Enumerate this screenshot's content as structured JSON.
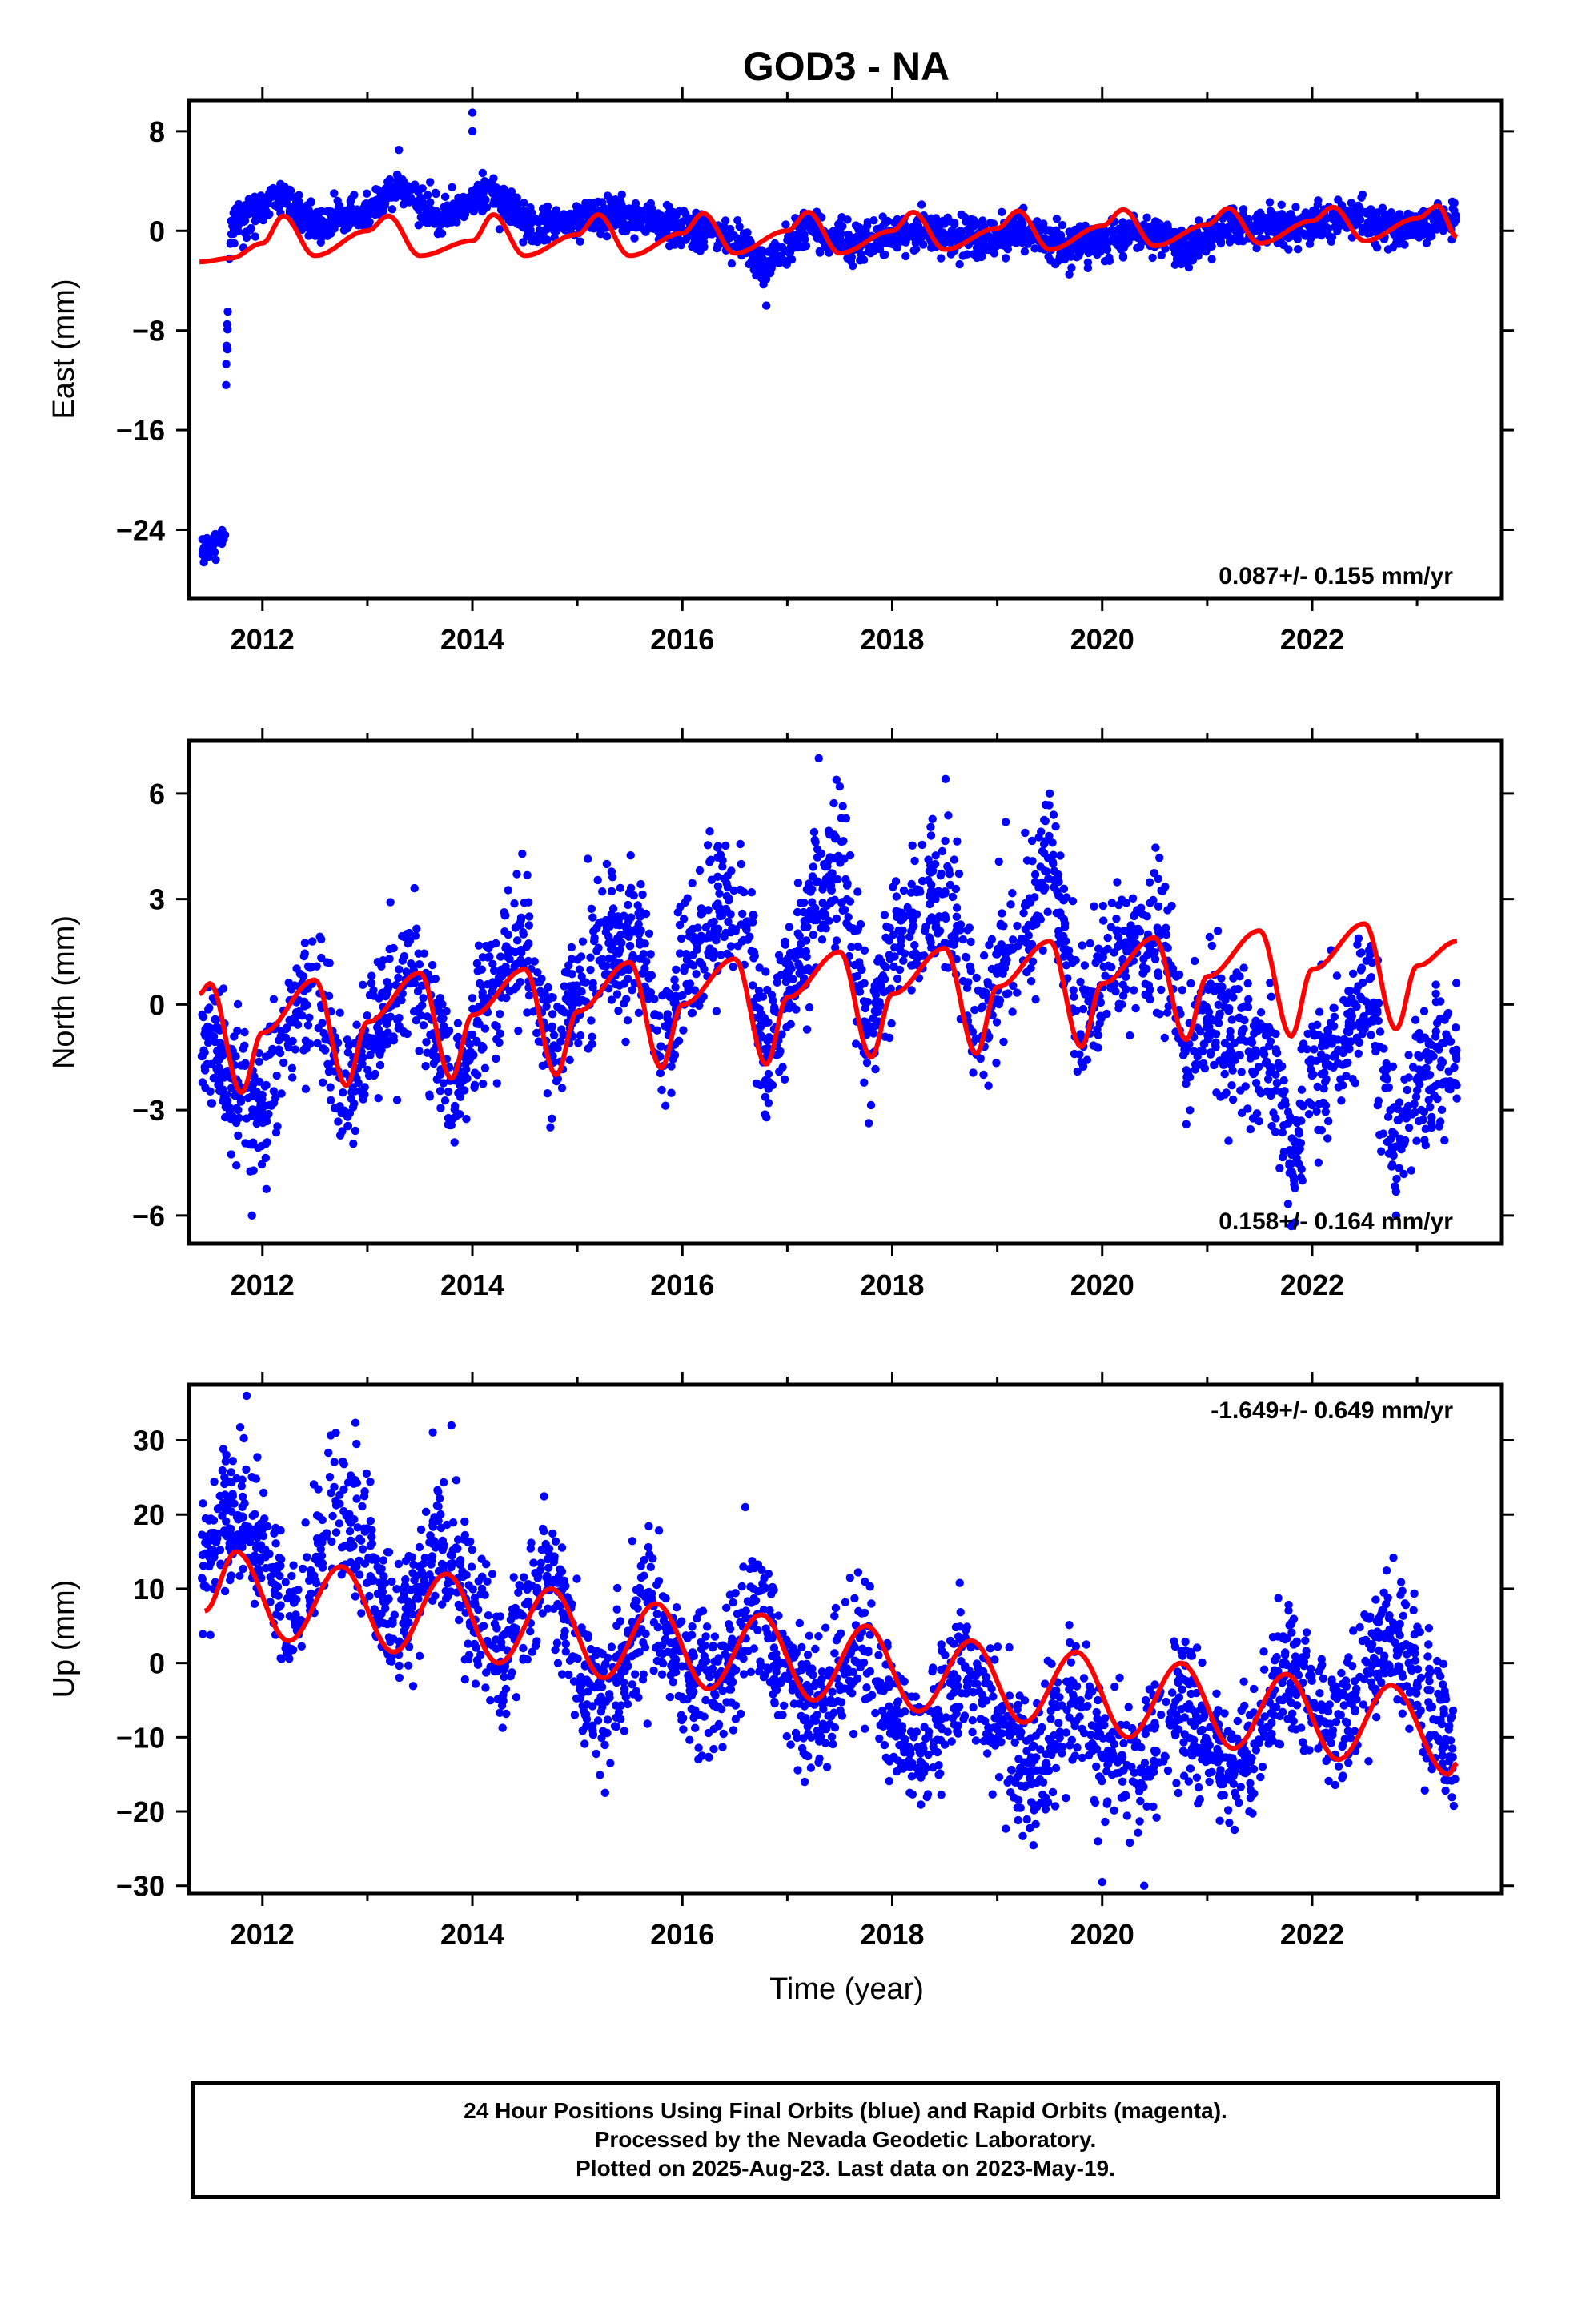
{
  "title": "GOD3 - NA",
  "colors": {
    "data": "#0000ff",
    "model": "#ff0000",
    "frame": "#000000"
  },
  "xaxis": {
    "label": "Time (year)",
    "range": [
      2011.3,
      2023.8
    ],
    "ticks": [
      "2012",
      "2014",
      "2016",
      "2018",
      "2020",
      "2022"
    ]
  },
  "footer": {
    "line1": "24 Hour Positions Using Final Orbits (blue) and Rapid Orbits (magenta).",
    "line2": "Processed by the Nevada Geodetic Laboratory.",
    "line3": "Plotted on 2025-Aug-23. Last data on 2023-May-19."
  },
  "chart_data": [
    {
      "type": "scatter",
      "ylabel": "East (mm)",
      "ylim": [
        -29.5,
        10.5
      ],
      "yticks": [
        "8",
        "0",
        "−8",
        "−16",
        "−24"
      ],
      "rate_label": "0.087+/- 0.155 mm/yr",
      "rate_position": "bottom-right",
      "series": [
        {
          "kind": "points",
          "x_start": 2011.42,
          "x_end": 2023.38,
          "samples": [
            [
              2011.45,
              -26.0
            ],
            [
              2011.6,
              -25.0
            ],
            [
              2011.7,
              0.5
            ],
            [
              2012.2,
              2.8
            ],
            [
              2012.5,
              0.4
            ],
            [
              2013.0,
              1.5
            ],
            [
              2013.3,
              3.5
            ],
            [
              2013.7,
              1.0
            ],
            [
              2014.0,
              2.5
            ],
            [
              2014.2,
              3.0
            ],
            [
              2014.6,
              0.0
            ],
            [
              2015.0,
              0.8
            ],
            [
              2015.4,
              1.5
            ],
            [
              2016.0,
              0.0
            ],
            [
              2016.5,
              -0.5
            ],
            [
              2016.8,
              -3.0
            ],
            [
              2017.2,
              0.5
            ],
            [
              2017.6,
              -1.0
            ],
            [
              2018.0,
              -0.5
            ],
            [
              2018.4,
              0.0
            ],
            [
              2018.8,
              -1.0
            ],
            [
              2019.2,
              0.3
            ],
            [
              2019.6,
              -1.2
            ],
            [
              2020.0,
              -0.8
            ],
            [
              2020.4,
              -0.2
            ],
            [
              2020.8,
              -1.3
            ],
            [
              2021.2,
              0.2
            ],
            [
              2021.6,
              0.3
            ],
            [
              2022.0,
              0.5
            ],
            [
              2022.4,
              1.0
            ],
            [
              2022.8,
              0.2
            ],
            [
              2023.2,
              0.8
            ]
          ],
          "outliers": [
            [
              2014.0,
              9.5
            ],
            [
              2014.0,
              8.0
            ],
            [
              2016.8,
              -6.0
            ],
            [
              2013.3,
              6.5
            ]
          ]
        },
        {
          "kind": "model_line",
          "annual_amplitude": 1.7,
          "phase_peak_year_fraction": 0.17,
          "approx_values": [
            [
              2011.4,
              -2.5
            ],
            [
              2011.7,
              -2.2
            ],
            [
              2012.0,
              -1.0
            ],
            [
              2012.2,
              1.2
            ],
            [
              2012.5,
              -2.0
            ],
            [
              2013.0,
              0.0
            ],
            [
              2013.2,
              1.2
            ],
            [
              2013.5,
              -2.0
            ],
            [
              2014.0,
              -0.8
            ],
            [
              2014.2,
              1.3
            ],
            [
              2014.5,
              -2.0
            ],
            [
              2015.0,
              -0.3
            ],
            [
              2015.2,
              1.3
            ],
            [
              2015.5,
              -2.0
            ],
            [
              2016.0,
              -0.2
            ],
            [
              2016.2,
              1.4
            ],
            [
              2016.5,
              -1.8
            ],
            [
              2017.0,
              0.0
            ],
            [
              2017.2,
              1.5
            ],
            [
              2017.5,
              -1.8
            ],
            [
              2018.0,
              0.0
            ],
            [
              2018.2,
              1.5
            ],
            [
              2018.5,
              -1.5
            ],
            [
              2019.0,
              0.2
            ],
            [
              2019.2,
              1.6
            ],
            [
              2019.5,
              -1.5
            ],
            [
              2020.0,
              0.4
            ],
            [
              2020.2,
              1.7
            ],
            [
              2020.5,
              -1.2
            ],
            [
              2021.0,
              0.5
            ],
            [
              2021.2,
              1.8
            ],
            [
              2021.5,
              -1.0
            ],
            [
              2022.0,
              0.8
            ],
            [
              2022.2,
              1.9
            ],
            [
              2022.5,
              -0.8
            ],
            [
              2023.0,
              1.0
            ],
            [
              2023.2,
              2.0
            ],
            [
              2023.38,
              -0.5
            ]
          ]
        }
      ]
    },
    {
      "type": "scatter",
      "ylabel": "North (mm)",
      "ylim": [
        -6.8,
        7.5
      ],
      "yticks": [
        "6",
        "3",
        "0",
        "−3",
        "−6"
      ],
      "rate_label": "0.158+/- 0.164 mm/yr",
      "rate_position": "bottom-right",
      "series": [
        {
          "kind": "points",
          "x_start": 2011.42,
          "x_end": 2023.38,
          "samples": [
            [
              2011.45,
              -1.0
            ],
            [
              2011.8,
              -2.5
            ],
            [
              2012.0,
              -3.0
            ],
            [
              2012.3,
              -0.5
            ],
            [
              2012.5,
              0.5
            ],
            [
              2012.8,
              -2.8
            ],
            [
              2013.0,
              -1.0
            ],
            [
              2013.3,
              0.5
            ],
            [
              2013.5,
              1.0
            ],
            [
              2013.8,
              -2.5
            ],
            [
              2014.0,
              -1.0
            ],
            [
              2014.3,
              1.0
            ],
            [
              2014.5,
              2.0
            ],
            [
              2014.8,
              -1.5
            ],
            [
              2015.0,
              0.5
            ],
            [
              2015.3,
              1.5
            ],
            [
              2015.6,
              1.8
            ],
            [
              2015.8,
              -2.0
            ],
            [
              2016.0,
              1.0
            ],
            [
              2016.3,
              2.5
            ],
            [
              2016.6,
              2.0
            ],
            [
              2016.8,
              -1.5
            ],
            [
              2017.0,
              0.5
            ],
            [
              2017.3,
              3.0
            ],
            [
              2017.5,
              4.0
            ],
            [
              2017.8,
              -1.0
            ],
            [
              2018.0,
              1.5
            ],
            [
              2018.3,
              2.5
            ],
            [
              2018.6,
              3.0
            ],
            [
              2018.8,
              -1.0
            ],
            [
              2019.0,
              1.0
            ],
            [
              2019.3,
              2.5
            ],
            [
              2019.5,
              4.5
            ],
            [
              2019.8,
              -1.0
            ],
            [
              2020.0,
              1.0
            ],
            [
              2020.3,
              1.5
            ],
            [
              2020.6,
              2.0
            ],
            [
              2020.8,
              -1.5
            ],
            [
              2021.0,
              -0.5
            ],
            [
              2021.3,
              -1.0
            ],
            [
              2021.6,
              -1.5
            ],
            [
              2021.8,
              -4.5
            ],
            [
              2022.0,
              -1.5
            ],
            [
              2022.3,
              -1.0
            ],
            [
              2022.5,
              0.5
            ],
            [
              2022.8,
              -4.0
            ],
            [
              2023.0,
              -2.0
            ],
            [
              2023.3,
              -1.5
            ]
          ],
          "outliers": [
            [
              2017.3,
              7.0
            ],
            [
              2017.5,
              6.2
            ],
            [
              2019.5,
              6.0
            ],
            [
              2011.9,
              -6.0
            ],
            [
              2021.8,
              -6.3
            ],
            [
              2022.8,
              -6.0
            ]
          ]
        },
        {
          "kind": "model_line",
          "annual_amplitude": 1.5,
          "phase_peak_year_fraction": 0.5,
          "approx_values": [
            [
              2011.4,
              0.3
            ],
            [
              2011.5,
              0.6
            ],
            [
              2011.8,
              -2.5
            ],
            [
              2012.0,
              -0.8
            ],
            [
              2012.5,
              0.7
            ],
            [
              2012.8,
              -2.3
            ],
            [
              2013.0,
              -0.5
            ],
            [
              2013.5,
              0.9
            ],
            [
              2013.8,
              -2.1
            ],
            [
              2014.0,
              -0.3
            ],
            [
              2014.5,
              1.0
            ],
            [
              2014.8,
              -2.0
            ],
            [
              2015.0,
              -0.2
            ],
            [
              2015.5,
              1.2
            ],
            [
              2015.8,
              -1.8
            ],
            [
              2016.0,
              0.0
            ],
            [
              2016.5,
              1.3
            ],
            [
              2016.8,
              -1.7
            ],
            [
              2017.0,
              0.2
            ],
            [
              2017.5,
              1.5
            ],
            [
              2017.8,
              -1.5
            ],
            [
              2018.0,
              0.3
            ],
            [
              2018.5,
              1.6
            ],
            [
              2018.8,
              -1.4
            ],
            [
              2019.0,
              0.5
            ],
            [
              2019.5,
              1.8
            ],
            [
              2019.8,
              -1.2
            ],
            [
              2020.0,
              0.6
            ],
            [
              2020.5,
              1.9
            ],
            [
              2020.8,
              -1.0
            ],
            [
              2021.0,
              0.8
            ],
            [
              2021.5,
              2.1
            ],
            [
              2021.8,
              -0.9
            ],
            [
              2022.0,
              1.0
            ],
            [
              2022.5,
              2.3
            ],
            [
              2022.8,
              -0.7
            ],
            [
              2023.0,
              1.1
            ],
            [
              2023.38,
              1.8
            ]
          ]
        }
      ]
    },
    {
      "type": "scatter",
      "ylabel": "Up (mm)",
      "ylim": [
        -31,
        37.5
      ],
      "yticks": [
        "30",
        "20",
        "10",
        "0",
        "−10",
        "−20",
        "−30"
      ],
      "rate_label": "-1.649+/- 0.649 mm/yr",
      "rate_position": "top-right",
      "series": [
        {
          "kind": "points",
          "x_start": 2011.42,
          "x_end": 2023.38,
          "samples": [
            [
              2011.45,
              14.0
            ],
            [
              2011.7,
              20.0
            ],
            [
              2012.0,
              15.0
            ],
            [
              2012.3,
              5.0
            ],
            [
              2012.7,
              22.0
            ],
            [
              2013.0,
              15.0
            ],
            [
              2013.3,
              3.0
            ],
            [
              2013.7,
              18.0
            ],
            [
              2014.0,
              8.0
            ],
            [
              2014.3,
              0.0
            ],
            [
              2014.7,
              13.0
            ],
            [
              2015.0,
              0.0
            ],
            [
              2015.3,
              -5.0
            ],
            [
              2015.7,
              8.0
            ],
            [
              2016.0,
              -2.0
            ],
            [
              2016.3,
              -5.0
            ],
            [
              2016.7,
              7.0
            ],
            [
              2017.0,
              -2.0
            ],
            [
              2017.3,
              -8.0
            ],
            [
              2017.7,
              3.0
            ],
            [
              2018.0,
              -8.0
            ],
            [
              2018.3,
              -12.0
            ],
            [
              2018.7,
              0.0
            ],
            [
              2019.0,
              -8.0
            ],
            [
              2019.3,
              -15.0
            ],
            [
              2019.7,
              -5.0
            ],
            [
              2020.0,
              -12.0
            ],
            [
              2020.3,
              -15.0
            ],
            [
              2020.7,
              -5.0
            ],
            [
              2021.0,
              -10.0
            ],
            [
              2021.3,
              -15.0
            ],
            [
              2021.7,
              0.0
            ],
            [
              2022.0,
              -5.0
            ],
            [
              2022.3,
              -8.0
            ],
            [
              2022.7,
              5.0
            ],
            [
              2023.0,
              -3.0
            ],
            [
              2023.3,
              -10.0
            ]
          ],
          "outliers": [
            [
              2011.85,
              36.0
            ],
            [
              2012.7,
              31.0
            ],
            [
              2013.8,
              32.0
            ],
            [
              2016.6,
              21.0
            ],
            [
              2020.0,
              -29.5
            ],
            [
              2020.4,
              -30.0
            ]
          ]
        },
        {
          "kind": "model_line",
          "annual_amplitude": 6.0,
          "phase_peak_year_fraction": 0.75,
          "approx_values": [
            [
              2011.45,
              7.0
            ],
            [
              2011.75,
              15.0
            ],
            [
              2012.25,
              3.0
            ],
            [
              2012.75,
              13.0
            ],
            [
              2013.25,
              1.5
            ],
            [
              2013.75,
              12.0
            ],
            [
              2014.25,
              0.0
            ],
            [
              2014.75,
              10.0
            ],
            [
              2015.25,
              -2.0
            ],
            [
              2015.75,
              8.0
            ],
            [
              2016.25,
              -3.5
            ],
            [
              2016.75,
              6.5
            ],
            [
              2017.25,
              -5.0
            ],
            [
              2017.75,
              5.0
            ],
            [
              2018.25,
              -6.5
            ],
            [
              2018.75,
              3.0
            ],
            [
              2019.25,
              -8.0
            ],
            [
              2019.75,
              1.5
            ],
            [
              2020.25,
              -10.0
            ],
            [
              2020.75,
              0.0
            ],
            [
              2021.25,
              -11.5
            ],
            [
              2021.75,
              -1.5
            ],
            [
              2022.25,
              -13.0
            ],
            [
              2022.75,
              -3.0
            ],
            [
              2023.3,
              -15.0
            ],
            [
              2023.38,
              -13.5
            ]
          ]
        }
      ]
    }
  ]
}
